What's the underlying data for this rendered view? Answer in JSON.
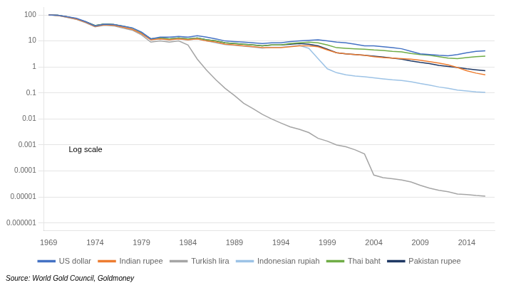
{
  "chart_data": {
    "type": "line",
    "annotations": [
      "Log scale",
      "Source: World Gold Council, Goldmoney"
    ],
    "x": [
      1969,
      1970,
      1971,
      1972,
      1973,
      1974,
      1975,
      1976,
      1977,
      1978,
      1979,
      1980,
      1981,
      1982,
      1983,
      1984,
      1985,
      1986,
      1987,
      1988,
      1989,
      1990,
      1991,
      1992,
      1993,
      1994,
      1995,
      1996,
      1997,
      1998,
      1999,
      2000,
      2001,
      2002,
      2003,
      2004,
      2005,
      2006,
      2007,
      2008,
      2009,
      2010,
      2011,
      2012,
      2013,
      2014,
      2015,
      2016
    ],
    "series": [
      {
        "name": "US dollar",
        "color": "#4472C4",
        "values": [
          100,
          97,
          86,
          74,
          55,
          38,
          44,
          43,
          37,
          32,
          22,
          12,
          14,
          14,
          15,
          14,
          16,
          14,
          12,
          10,
          9.5,
          9,
          8.5,
          8,
          8.5,
          8.5,
          9.5,
          10,
          10.5,
          11,
          10,
          9,
          8.5,
          7.5,
          6.5,
          6.5,
          6,
          5.5,
          5,
          4,
          3.2,
          3,
          2.8,
          2.7,
          3,
          3.5,
          4.0,
          4.2
        ]
      },
      {
        "name": "Indian rupee",
        "color": "#ED7D31",
        "values": [
          100,
          96,
          83,
          70,
          52,
          36,
          42,
          40,
          34,
          28,
          19,
          11,
          12,
          11,
          12,
          11,
          12,
          10,
          9,
          7.5,
          7,
          6.5,
          6,
          5.5,
          5.5,
          5.5,
          6,
          6.5,
          6.5,
          6,
          4.5,
          3.5,
          3.2,
          3.0,
          2.8,
          2.5,
          2.3,
          2.2,
          2.1,
          2.0,
          1.8,
          1.6,
          1.4,
          1.2,
          0.95,
          0.72,
          0.58,
          0.5
        ]
      },
      {
        "name": "Turkish lira",
        "color": "#A5A5A5",
        "values": [
          100,
          95,
          80,
          67,
          50,
          35,
          40,
          38,
          31,
          26,
          17,
          9,
          10,
          9,
          10,
          7,
          2.0,
          0.75,
          0.32,
          0.15,
          0.08,
          0.04,
          0.025,
          0.015,
          0.01,
          0.007,
          0.005,
          0.004,
          0.003,
          0.0018,
          0.0014,
          0.001,
          0.00085,
          0.00065,
          0.00045,
          7e-05,
          5.5e-05,
          5e-05,
          4.5e-05,
          3.8e-05,
          2.8e-05,
          2.2e-05,
          1.8e-05,
          1.6e-05,
          1.3e-05,
          1.25e-05,
          1.15e-05,
          1.08e-05
        ]
      },
      {
        "name": "Indonesian rupiah",
        "color": "#9DC3E6",
        "values": [
          100,
          96,
          82,
          68,
          52,
          37,
          43,
          41,
          35,
          29,
          19,
          11,
          12,
          11,
          12,
          11,
          12,
          10,
          8.5,
          7.2,
          6.8,
          6.3,
          5.8,
          5.3,
          5.7,
          5.7,
          6.2,
          6.7,
          5.2,
          2.1,
          0.85,
          0.6,
          0.5,
          0.45,
          0.42,
          0.38,
          0.35,
          0.32,
          0.3,
          0.27,
          0.23,
          0.2,
          0.17,
          0.15,
          0.13,
          0.12,
          0.11,
          0.105
        ]
      },
      {
        "name": "Thai baht",
        "color": "#70AD47",
        "values": [
          100,
          97,
          84,
          71,
          54,
          39,
          45,
          43,
          37,
          31,
          21,
          12,
          13,
          12,
          13,
          12,
          13,
          11,
          10,
          8.5,
          8,
          7.5,
          7,
          6.5,
          7,
          7,
          8,
          8.5,
          9,
          8.5,
          7.0,
          5.5,
          5.2,
          5.0,
          4.8,
          4.5,
          4.3,
          4.0,
          3.8,
          3.3,
          3.0,
          2.8,
          2.5,
          2.2,
          2.1,
          2.3,
          2.5,
          2.6
        ]
      },
      {
        "name": "Pakistan rupee",
        "color": "#1F3864",
        "values": [
          100,
          97,
          84,
          71,
          54,
          39,
          45,
          43,
          36,
          30,
          20,
          12,
          13,
          12,
          13,
          12,
          13,
          11,
          10,
          8.5,
          8,
          7.5,
          7,
          6.5,
          7,
          7,
          7.5,
          8,
          7.5,
          6.5,
          4.8,
          3.5,
          3.2,
          3.0,
          2.8,
          2.6,
          2.4,
          2.2,
          2.0,
          1.7,
          1.5,
          1.35,
          1.15,
          1.05,
          0.95,
          0.85,
          0.78,
          0.72
        ]
      }
    ],
    "xlim": [
      1968.5,
      2017
    ],
    "xticks": [
      1969,
      1974,
      1979,
      1984,
      1989,
      1994,
      1999,
      2004,
      2009,
      2014
    ],
    "ylim": [
      5e-07,
      200
    ],
    "yticks": [
      100,
      10,
      1,
      0.1,
      0.01,
      0.001,
      0.0001,
      1e-05,
      1e-06
    ],
    "log": "y",
    "grid": "y",
    "legend": "bottom"
  }
}
